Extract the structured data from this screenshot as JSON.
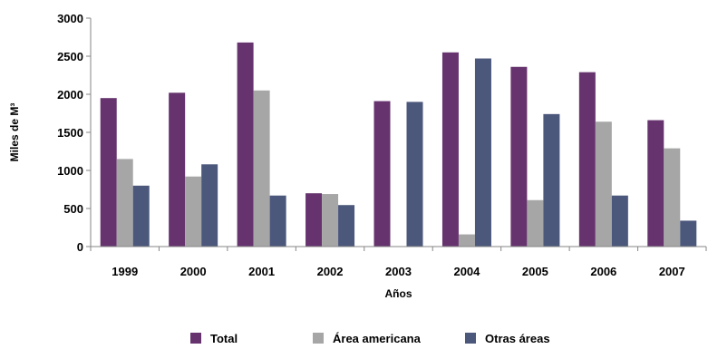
{
  "chart_data": {
    "type": "bar",
    "categories": [
      "1999",
      "2000",
      "2001",
      "2002",
      "2003",
      "2004",
      "2005",
      "2006",
      "2007"
    ],
    "series": [
      {
        "name": "Total",
        "color": "#66336e",
        "values": [
          1950,
          2020,
          2680,
          700,
          1910,
          2550,
          2360,
          2290,
          1660
        ]
      },
      {
        "name": "Área americana",
        "color": "#a6a6a6",
        "values": [
          1150,
          920,
          2050,
          690,
          0,
          160,
          610,
          1640,
          1290
        ]
      },
      {
        "name": "Otras áreas",
        "color": "#4b577b",
        "values": [
          800,
          1080,
          670,
          545,
          1900,
          2470,
          1740,
          670,
          340
        ]
      }
    ],
    "title": "",
    "xlabel": "Años",
    "ylabel": "Miles de M³",
    "ylim": [
      0,
      3000
    ],
    "yticks": [
      0,
      500,
      1000,
      1500,
      2000,
      2500,
      3000
    ],
    "grid": false,
    "legend": "bottom"
  }
}
